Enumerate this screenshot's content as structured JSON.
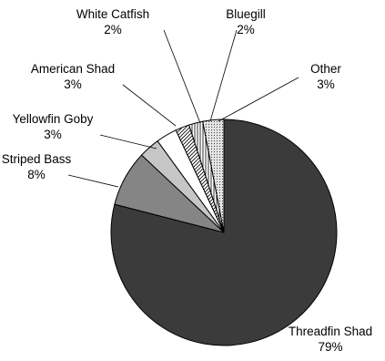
{
  "chart_data": {
    "type": "pie",
    "title": "",
    "slices": [
      {
        "label": "Threadfin Shad",
        "value": 79,
        "percent_label": "79%",
        "color": "#3b3b3b",
        "pattern": "solid"
      },
      {
        "label": "Striped Bass",
        "value": 8,
        "percent_label": "8%",
        "color": "#858585",
        "pattern": "solid"
      },
      {
        "label": "Yellowfin Goby",
        "value": 3,
        "percent_label": "3%",
        "color": "#c6c6c6",
        "pattern": "solid"
      },
      {
        "label": "American Shad",
        "value": 3,
        "percent_label": "3%",
        "color": "#ffffff",
        "pattern": "solid"
      },
      {
        "label": "White Catfish",
        "value": 2,
        "percent_label": "2%",
        "color": "#ffffff",
        "pattern": "diagonal-stripes"
      },
      {
        "label": "Bluegill",
        "value": 2,
        "percent_label": "2%",
        "color": "#ffffff",
        "pattern": "vertical-stripes"
      },
      {
        "label": "Other",
        "value": 3,
        "percent_label": "3%",
        "color": "#d9d9d9",
        "pattern": "dots"
      }
    ],
    "start_angle_deg": 0,
    "direction": "clockwise",
    "legend": "none"
  }
}
